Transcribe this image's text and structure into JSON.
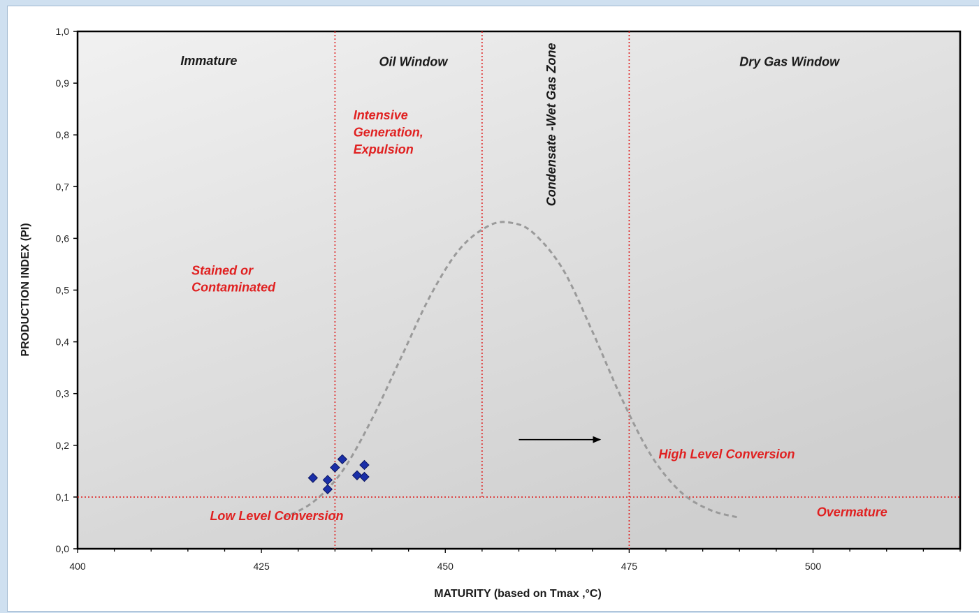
{
  "chart_data": {
    "type": "scatter",
    "title": "",
    "xlabel": "MATURITY (based on Tmax ,°C)",
    "ylabel": "PRODUCTION INDEX (PI)",
    "xlim": [
      400,
      520
    ],
    "ylim": [
      0,
      1.0
    ],
    "x_ticks": [
      400,
      425,
      450,
      475,
      500
    ],
    "x_tick_labels": [
      "400",
      "425",
      "450",
      "475",
      "500"
    ],
    "y_ticks": [
      0,
      0.1,
      0.2,
      0.3,
      0.4,
      0.5,
      0.6,
      0.7,
      0.8,
      0.9,
      1.0
    ],
    "y_tick_labels": [
      "0,0",
      "0,1",
      "0,2",
      "0,3",
      "0,4",
      "0,5",
      "0,6",
      "0,7",
      "0,8",
      "0,9",
      "1,0"
    ],
    "grid": false,
    "plot_background": "gradient light grey",
    "series": [
      {
        "marker": "diamond",
        "color": "#1a2fa8",
        "points": [
          {
            "x": 432,
            "y": 0.137
          },
          {
            "x": 434,
            "y": 0.133
          },
          {
            "x": 434,
            "y": 0.115
          },
          {
            "x": 435,
            "y": 0.157
          },
          {
            "x": 436,
            "y": 0.173
          },
          {
            "x": 438,
            "y": 0.142
          },
          {
            "x": 439,
            "y": 0.162
          },
          {
            "x": 439,
            "y": 0.139
          }
        ]
      }
    ],
    "curve": {
      "style": "dashed",
      "color": "#9a9a9a",
      "points": [
        {
          "x": 428,
          "y": 0.06
        },
        {
          "x": 432,
          "y": 0.09
        },
        {
          "x": 436,
          "y": 0.15
        },
        {
          "x": 440,
          "y": 0.25
        },
        {
          "x": 444,
          "y": 0.37
        },
        {
          "x": 448,
          "y": 0.49
        },
        {
          "x": 452,
          "y": 0.58
        },
        {
          "x": 456,
          "y": 0.625
        },
        {
          "x": 459,
          "y": 0.63
        },
        {
          "x": 462,
          "y": 0.61
        },
        {
          "x": 466,
          "y": 0.54
        },
        {
          "x": 470,
          "y": 0.42
        },
        {
          "x": 474,
          "y": 0.29
        },
        {
          "x": 478,
          "y": 0.18
        },
        {
          "x": 482,
          "y": 0.11
        },
        {
          "x": 486,
          "y": 0.075
        },
        {
          "x": 490,
          "y": 0.06
        }
      ]
    },
    "reference_lines": {
      "vertical_x": [
        435,
        455,
        475
      ],
      "horizontal_y": [
        0.1
      ],
      "style": "dotted",
      "color": "#e02020"
    },
    "annotations": [
      {
        "text": "Immature",
        "x": 414,
        "y": 0.935,
        "color": "#1a1a1a"
      },
      {
        "text": "Oil  Window",
        "x": 441,
        "y": 0.933,
        "color": "#1a1a1a"
      },
      {
        "text": "Dry Gas Window",
        "x": 490,
        "y": 0.933,
        "color": "#1a1a1a"
      },
      {
        "text": "Condensate -Wet Gas Zone",
        "x": 465,
        "y": 0.82,
        "color": "#1a1a1a",
        "rotated": true
      },
      {
        "text": "Intensive",
        "x": 437.5,
        "y": 0.83,
        "color": "#e02020"
      },
      {
        "text": "Generation,",
        "x": 437.5,
        "y": 0.797,
        "color": "#e02020"
      },
      {
        "text": "Expulsion",
        "x": 437.5,
        "y": 0.764,
        "color": "#e02020"
      },
      {
        "text": "Stained or",
        "x": 415.5,
        "y": 0.53,
        "color": "#e02020"
      },
      {
        "text": "Contaminated",
        "x": 415.5,
        "y": 0.497,
        "color": "#e02020"
      },
      {
        "text": "High Level Conversion",
        "x": 479,
        "y": 0.175,
        "color": "#e02020"
      },
      {
        "text": "Low Level Conversion",
        "x": 418,
        "y": 0.055,
        "color": "#e02020"
      },
      {
        "text": "Overmature",
        "x": 500.5,
        "y": 0.063,
        "color": "#e02020"
      }
    ],
    "arrow": {
      "from": {
        "x": 460,
        "y": 0.211
      },
      "to": {
        "x": 471,
        "y": 0.211
      },
      "color": "#000000"
    }
  }
}
